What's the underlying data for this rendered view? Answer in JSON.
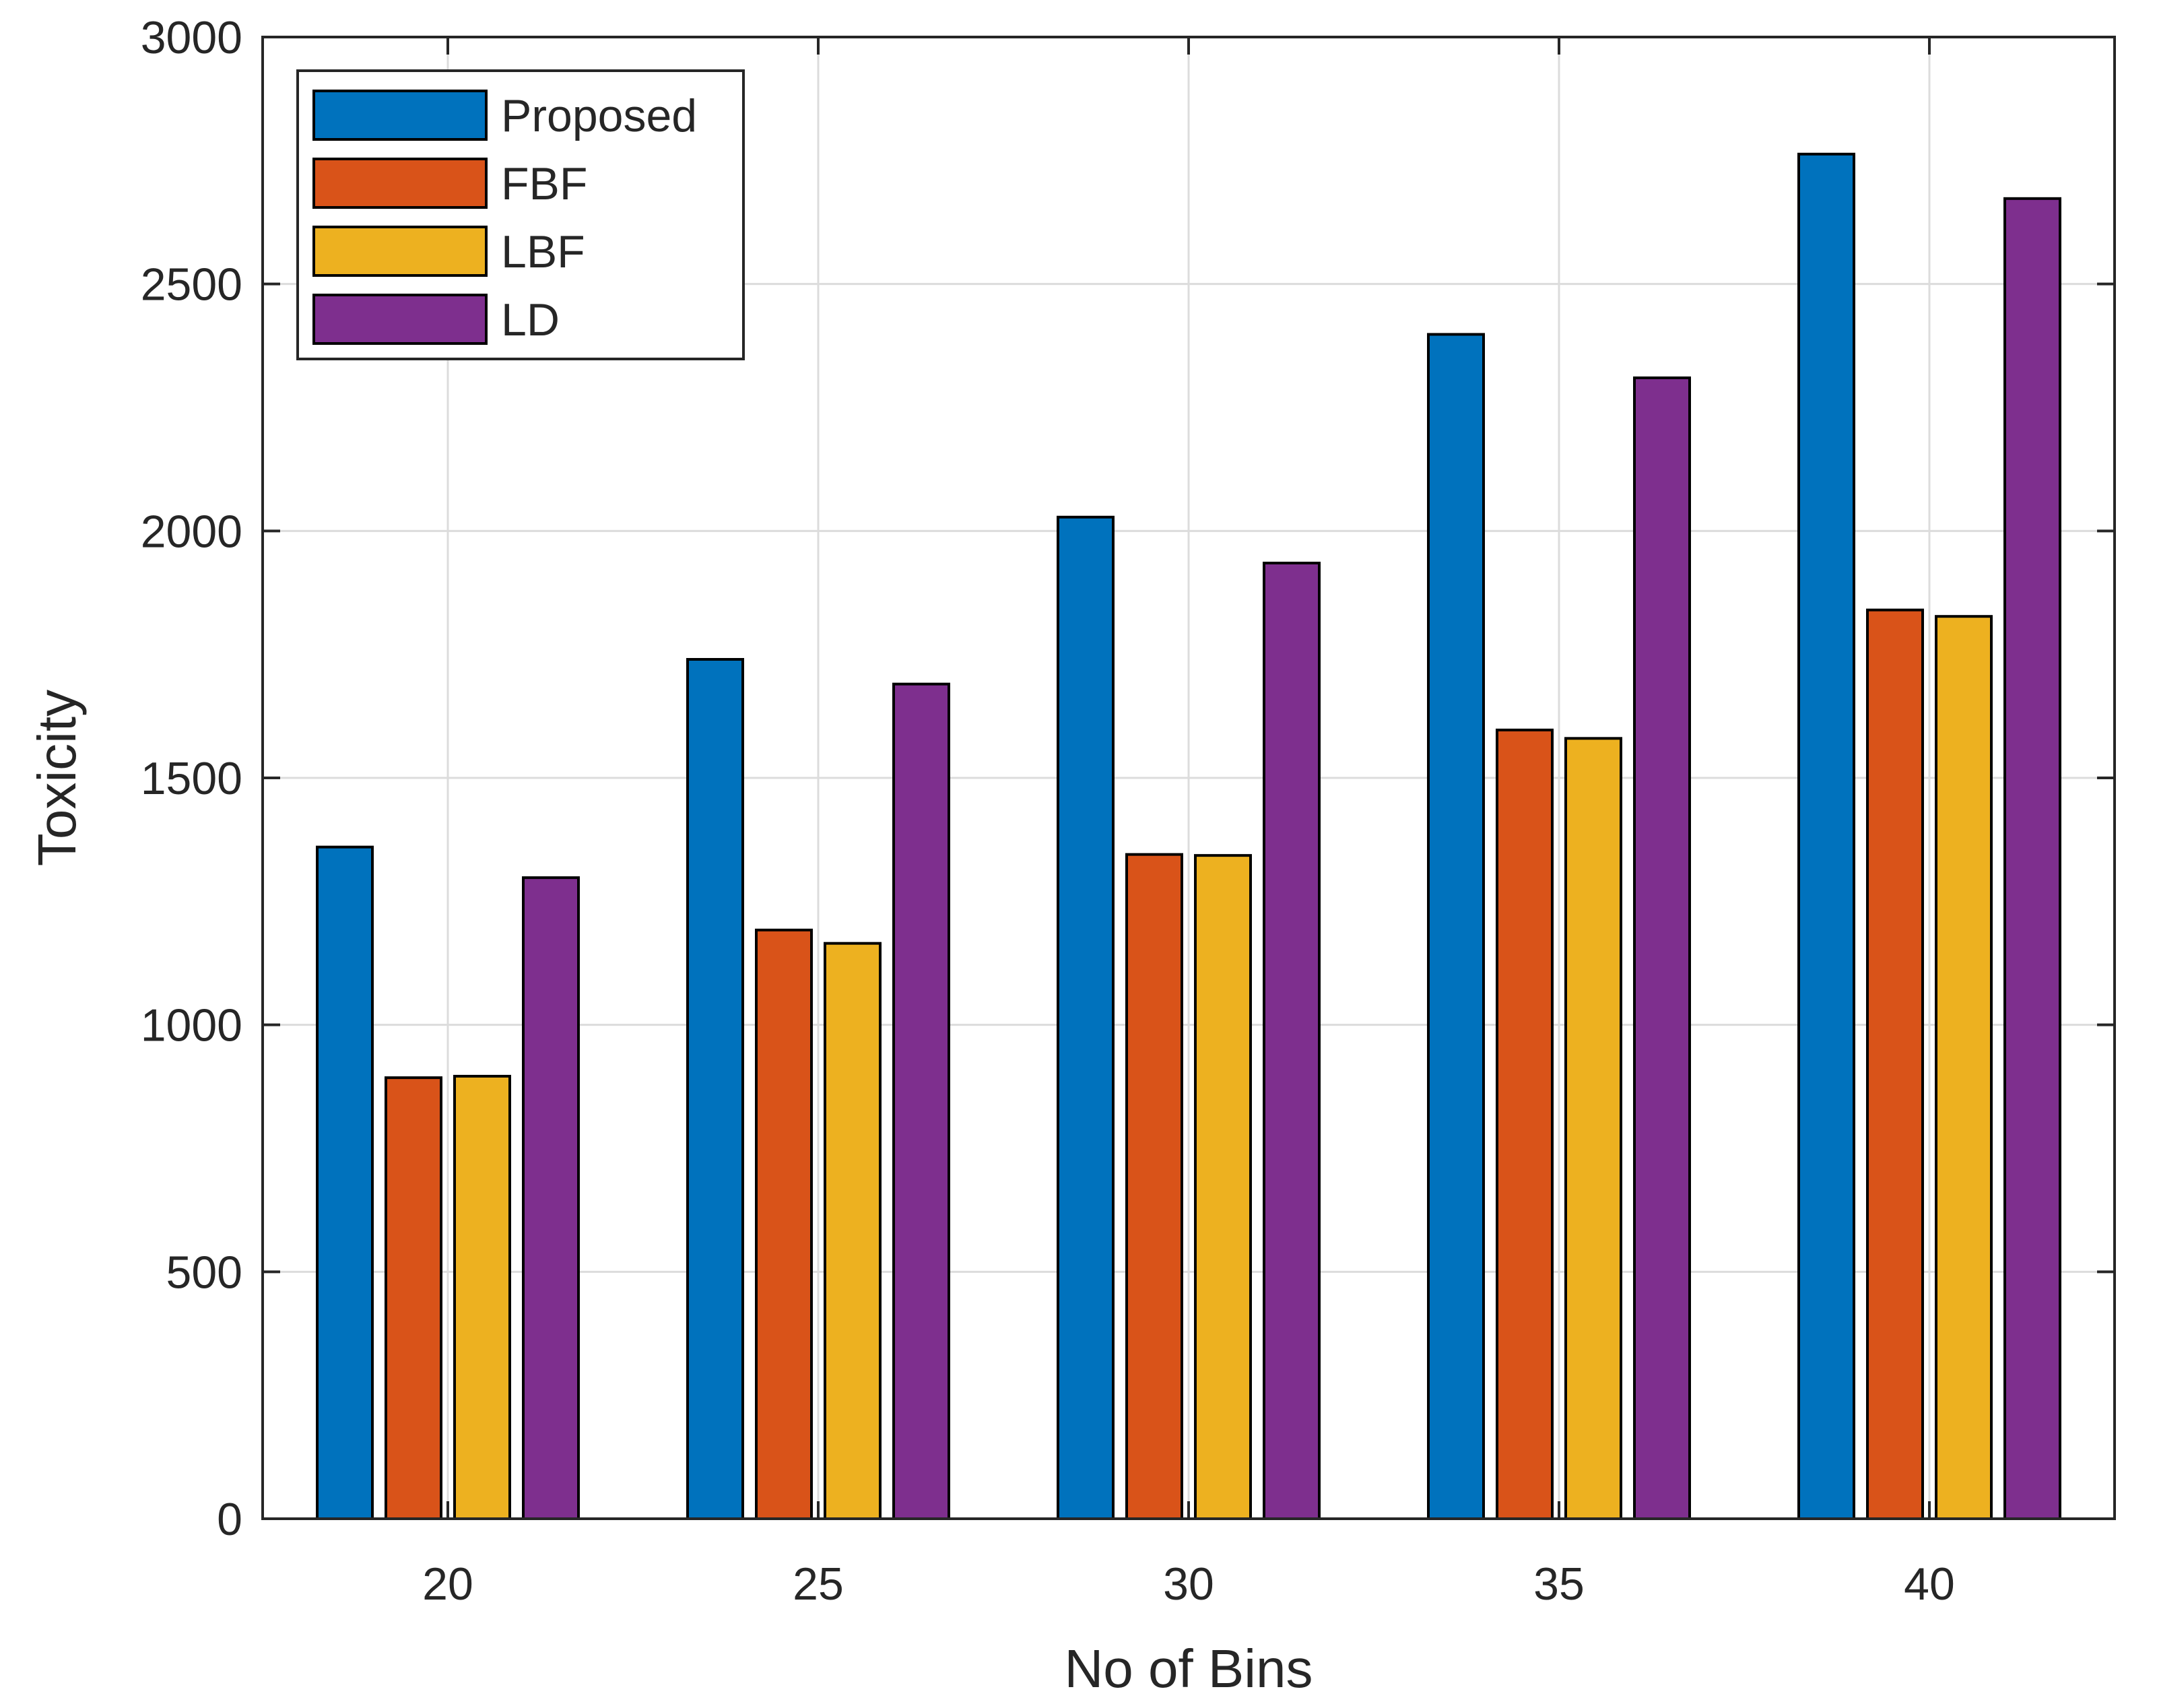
{
  "chart_data": {
    "type": "bar",
    "title": "",
    "xlabel": "No of Bins",
    "ylabel": "Toxicity",
    "categories": [
      "20",
      "25",
      "30",
      "35",
      "40"
    ],
    "ylim": [
      0,
      3000
    ],
    "yticks": [
      0,
      500,
      1000,
      1500,
      2000,
      2500,
      3000
    ],
    "grid": true,
    "legend_position": "top-left",
    "series": [
      {
        "name": "Proposed",
        "color": "#0072BD",
        "values": [
          1360,
          1740,
          2028,
          2398,
          2763
        ]
      },
      {
        "name": "FBF",
        "color": "#D95319",
        "values": [
          893,
          1192,
          1345,
          1597,
          1840
        ]
      },
      {
        "name": "LBF",
        "color": "#EDB120",
        "values": [
          896,
          1165,
          1343,
          1580,
          1827
        ]
      },
      {
        "name": "LD",
        "color": "#7E2F8E",
        "values": [
          1298,
          1690,
          1935,
          2310,
          2673
        ]
      }
    ]
  }
}
